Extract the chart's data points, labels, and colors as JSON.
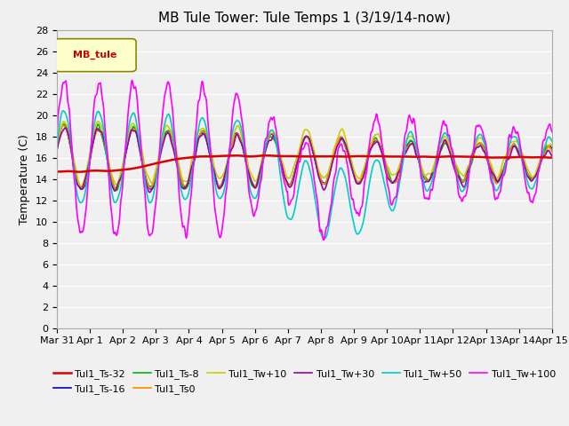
{
  "title": "MB Tule Tower: Tule Temps 1 (3/19/14-now)",
  "ylabel": "Temperature (C)",
  "ylim": [
    0,
    28
  ],
  "yticks": [
    0,
    2,
    4,
    6,
    8,
    10,
    12,
    14,
    16,
    18,
    20,
    22,
    24,
    26,
    28
  ],
  "xtick_labels": [
    "Mar 31",
    "Apr 1",
    "Apr 2",
    "Apr 3",
    "Apr 4",
    "Apr 5",
    "Apr 6",
    "Apr 7",
    "Apr 8",
    "Apr 9",
    "Apr 10",
    "Apr 11",
    "Apr 12",
    "Apr 13",
    "Apr 14",
    "Apr 15"
  ],
  "legend_label": "MB_tule",
  "series_labels": [
    "Tul1_Ts-32",
    "Tul1_Ts-16",
    "Tul1_Ts-8",
    "Tul1_Ts0",
    "Tul1_Tw+10",
    "Tul1_Tw+30",
    "Tul1_Tw+50",
    "Tul1_Tw+100"
  ],
  "series_colors": [
    "#dd0000",
    "#0000cc",
    "#00bb00",
    "#ff8800",
    "#cccc00",
    "#9900aa",
    "#00cccc",
    "#ff00ff"
  ],
  "series_linewidths": [
    1.8,
    1.2,
    1.2,
    1.2,
    1.2,
    1.2,
    1.2,
    1.2
  ],
  "background_color": "#f0f0f0",
  "grid_color": "#ffffff",
  "title_fontsize": 11,
  "axis_fontsize": 9,
  "tick_fontsize": 8
}
